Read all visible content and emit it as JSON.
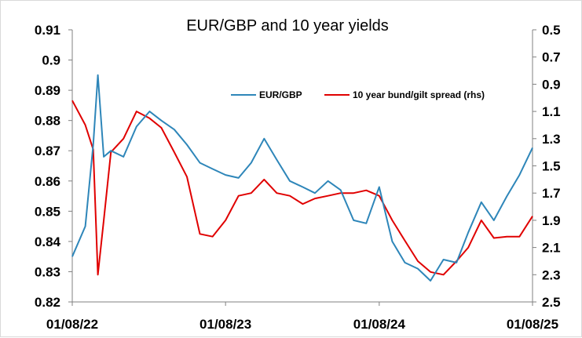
{
  "chart_data": {
    "type": "line",
    "title": "EUR/GBP and 10 year yields",
    "xlabel": "",
    "ylabel": "",
    "x_ticks": [
      "01/08/22",
      "01/08/23",
      "01/08/24",
      "01/08/25"
    ],
    "y_left": {
      "ticks": [
        "0.91",
        "0.9",
        "0.89",
        "0.88",
        "0.87",
        "0.86",
        "0.85",
        "0.84",
        "0.83",
        "0.82"
      ],
      "lim": [
        0.82,
        0.91
      ]
    },
    "y_right": {
      "ticks": [
        "0.5",
        "0.7",
        "0.9",
        "1.1",
        "1.3",
        "1.5",
        "1.7",
        "1.9",
        "2.1",
        "2.3",
        "2.5"
      ],
      "lim": [
        0.5,
        2.5
      ],
      "inverted": true
    },
    "legend_position": "top-right",
    "grid": false,
    "x": [
      "2022-08-01",
      "2022-09-01",
      "2022-09-20",
      "2022-10-01",
      "2022-10-15",
      "2022-11-01",
      "2022-12-01",
      "2023-01-01",
      "2023-02-01",
      "2023-03-01",
      "2023-04-01",
      "2023-05-01",
      "2023-06-01",
      "2023-07-01",
      "2023-08-01",
      "2023-09-01",
      "2023-10-01",
      "2023-11-01",
      "2023-12-01",
      "2024-01-01",
      "2024-02-01",
      "2024-03-01",
      "2024-04-01",
      "2024-05-01",
      "2024-06-01",
      "2024-07-01",
      "2024-08-01",
      "2024-09-01",
      "2024-10-01",
      "2024-11-01",
      "2024-12-01",
      "2025-01-01",
      "2025-02-01",
      "2025-03-01",
      "2025-04-01",
      "2025-05-01",
      "2025-06-01",
      "2025-07-01",
      "2025-08-01"
    ],
    "series": [
      {
        "name": "EUR/GBP",
        "axis": "left",
        "color": "#2e86b9",
        "values": [
          0.835,
          0.845,
          0.872,
          0.895,
          0.868,
          0.87,
          0.868,
          0.878,
          0.883,
          0.88,
          0.877,
          0.872,
          0.866,
          0.864,
          0.862,
          0.861,
          0.866,
          0.874,
          0.867,
          0.86,
          0.858,
          0.856,
          0.86,
          0.857,
          0.847,
          0.846,
          0.858,
          0.84,
          0.833,
          0.831,
          0.827,
          0.834,
          0.833,
          0.843,
          0.853,
          0.847,
          0.855,
          0.862,
          0.871
        ]
      },
      {
        "name": "10 year bund/gilt spread (rhs)",
        "axis": "right",
        "color": "#e00000",
        "values": [
          1.02,
          1.2,
          1.38,
          2.3,
          1.9,
          1.4,
          1.3,
          1.1,
          1.15,
          1.22,
          1.4,
          1.58,
          2.0,
          2.02,
          1.9,
          1.72,
          1.7,
          1.6,
          1.7,
          1.72,
          1.78,
          1.74,
          1.72,
          1.7,
          1.7,
          1.68,
          1.72,
          1.9,
          2.05,
          2.2,
          2.28,
          2.3,
          2.2,
          2.1,
          1.9,
          2.03,
          2.02,
          2.02,
          1.87
        ]
      }
    ]
  }
}
